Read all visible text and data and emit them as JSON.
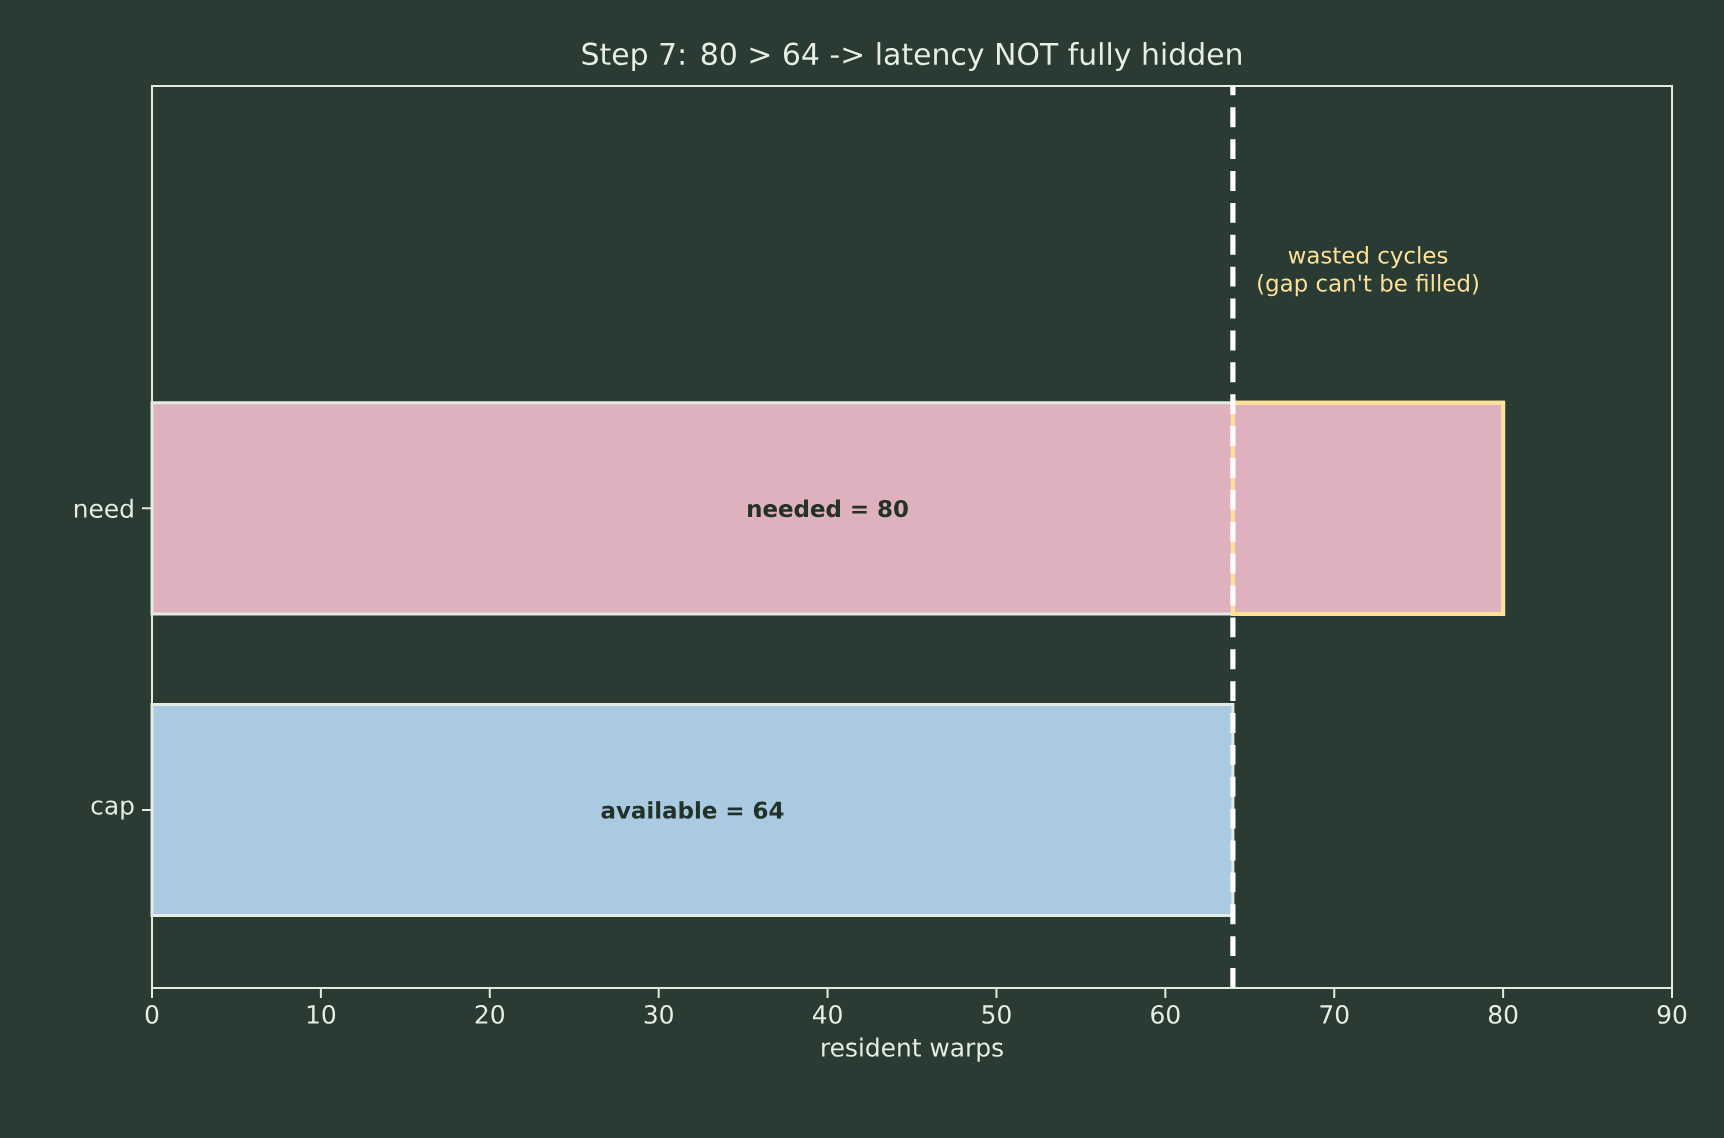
{
  "chart_data": {
    "type": "bar",
    "orientation": "horizontal",
    "stacked": true,
    "title": "Step 7: 80 > 64  ->  latency NOT fully hidden",
    "xlabel": "resident warps",
    "categories": [
      "need",
      "cap"
    ],
    "series": [
      {
        "colors": [
          "#dfb0bd",
          "#a9cae0"
        ],
        "values": [
          64,
          64
        ]
      },
      {
        "color": "#ffe29a",
        "values": [
          16,
          null
        ]
      }
    ],
    "totals": [
      "needed = 80",
      "available = 64"
    ],
    "xlim": [
      0,
      90
    ],
    "xticks": [
      0,
      10,
      20,
      30,
      40,
      50,
      60,
      70,
      80,
      90
    ],
    "ref_lines": [
      {
        "axis": "x",
        "value": 64,
        "color": "#ffffff",
        "line_style": "dashed"
      }
    ],
    "annotations": [
      "wasted cycles",
      "(gap can't be filled)"
    ]
  }
}
